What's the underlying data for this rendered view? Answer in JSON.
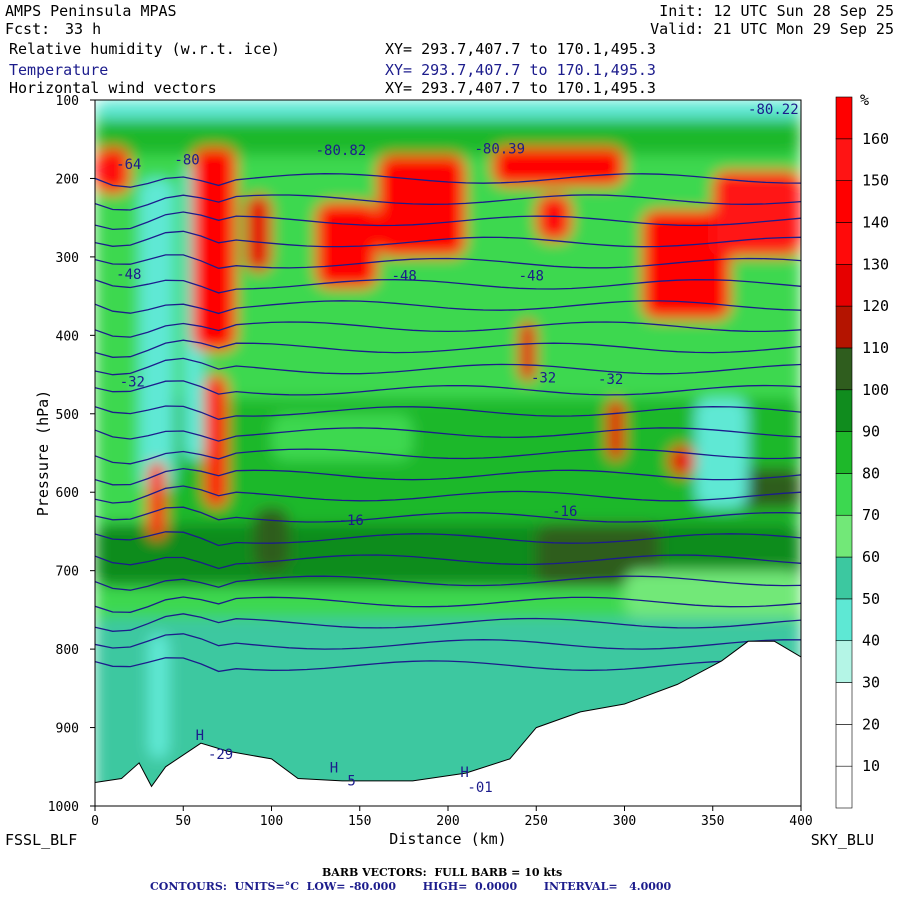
{
  "header": {
    "model": "AMPS Peninsula MPAS",
    "fcst_label": "Fcst:",
    "fcst_value": "33 h",
    "init": "Init: 12 UTC Sun 28 Sep 25",
    "valid": "Valid: 21 UTC Mon 29 Sep 25",
    "fields": [
      {
        "name": "Relative humidity (w.r.t. ice)",
        "xy": "XY= 293.7,407.7 to 170.1,495.3"
      },
      {
        "name": "Temperature",
        "xy": "XY= 293.7,407.7 to 170.1,495.3"
      },
      {
        "name": "Horizontal wind vectors",
        "xy": "XY= 293.7,407.7 to 170.1,495.3"
      }
    ]
  },
  "corners": {
    "left": "FSSL_BLF",
    "right": "SKY_BLU"
  },
  "footer": {
    "barb": "BARB VECTORS:  FULL BARB = 10 kts",
    "contours": "CONTOURS:  UNITS=°C  LOW= -80.000       HIGH=  0.0000       INTERVAL=   4.0000"
  },
  "colors": {
    "contour": "#1c1c8c",
    "terrain": "#ffffff"
  },
  "chart_data": {
    "type": "heatmap",
    "xlabel": "Distance (km)",
    "ylabel": "Pressure (hPa)",
    "xlim": [
      0,
      400
    ],
    "ylim": [
      1000,
      100
    ],
    "x_ticks": [
      "0",
      "50",
      "100",
      "150",
      "200",
      "250",
      "300",
      "350",
      "400"
    ],
    "y_ticks": [
      "100",
      "200",
      "300",
      "400",
      "500",
      "600",
      "700",
      "800",
      "900",
      "1000"
    ],
    "colorbar": {
      "unit": "%",
      "labels": [
        "10",
        "20",
        "30",
        "40",
        "50",
        "60",
        "70",
        "80",
        "90",
        "100",
        "110",
        "120",
        "130",
        "140",
        "150",
        "160"
      ],
      "bands": [
        {
          "lo": 0,
          "hi": 10,
          "color": "#ffffff"
        },
        {
          "lo": 10,
          "hi": 20,
          "color": "#ffffff"
        },
        {
          "lo": 20,
          "hi": 30,
          "color": "#ffffff"
        },
        {
          "lo": 30,
          "hi": 40,
          "color": "#b4f5e6"
        },
        {
          "lo": 40,
          "hi": 50,
          "color": "#5ee8d4"
        },
        {
          "lo": 50,
          "hi": 60,
          "color": "#3cc8a0"
        },
        {
          "lo": 60,
          "hi": 70,
          "color": "#72e878"
        },
        {
          "lo": 70,
          "hi": 80,
          "color": "#3cd850"
        },
        {
          "lo": 80,
          "hi": 90,
          "color": "#1eb82a"
        },
        {
          "lo": 90,
          "hi": 100,
          "color": "#108c1e"
        },
        {
          "lo": 100,
          "hi": 110,
          "color": "#2f5d1e"
        },
        {
          "lo": 110,
          "hi": 120,
          "color": "#b41400"
        },
        {
          "lo": 120,
          "hi": 130,
          "color": "#e60000"
        },
        {
          "lo": 130,
          "hi": 140,
          "color": "#ff0a0a"
        },
        {
          "lo": 140,
          "hi": 150,
          "color": "#ff0000"
        },
        {
          "lo": 150,
          "hi": 160,
          "color": "#ff1414"
        },
        {
          "lo": 160,
          "hi": 170,
          "color": "#ff0000"
        }
      ]
    },
    "contour_labels": [
      {
        "text": "-80.22",
        "x": 370,
        "p": 118
      },
      {
        "text": "-80.82",
        "x": 125,
        "p": 170
      },
      {
        "text": "-80.39",
        "x": 215,
        "p": 168
      },
      {
        "text": "-64",
        "x": 12,
        "p": 188
      },
      {
        "text": "-80",
        "x": 45,
        "p": 182
      },
      {
        "text": "-48",
        "x": 12,
        "p": 328
      },
      {
        "text": "-48",
        "x": 168,
        "p": 330
      },
      {
        "text": "-48",
        "x": 240,
        "p": 330
      },
      {
        "text": "-32",
        "x": 14,
        "p": 465
      },
      {
        "text": "-32",
        "x": 247,
        "p": 460
      },
      {
        "text": "-32",
        "x": 285,
        "p": 462
      },
      {
        "text": "-16",
        "x": 138,
        "p": 642
      },
      {
        "text": "-16",
        "x": 259,
        "p": 630
      },
      {
        "text": "H",
        "x": 57,
        "p": 916
      },
      {
        "text": "-29",
        "x": 64,
        "p": 940
      },
      {
        "text": "H",
        "x": 133,
        "p": 957
      },
      {
        "text": "5",
        "x": 143,
        "p": 974
      },
      {
        "text": "H",
        "x": 207,
        "p": 963
      },
      {
        "text": "-01",
        "x": 211,
        "p": 982
      }
    ]
  }
}
